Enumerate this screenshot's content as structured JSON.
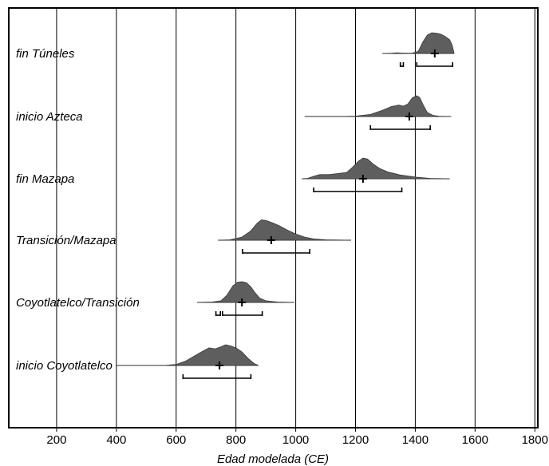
{
  "chart_data": {
    "type": "density-ridge",
    "title": "",
    "xlabel": "Edad modelada (CE)",
    "ylabel": "",
    "xlim": [
      40,
      1810
    ],
    "xticks": [
      200,
      400,
      600,
      800,
      1000,
      1200,
      1400,
      1600,
      1800
    ],
    "grid": true,
    "phases": [
      {
        "name": "fin Túneles",
        "mean": 1465,
        "range_start": 1290,
        "range_end": 1530,
        "intervals": [
          [
            1350,
            1360
          ],
          [
            1405,
            1525
          ]
        ],
        "density": [
          [
            1290,
            0.0
          ],
          [
            1320,
            0.01
          ],
          [
            1340,
            0.03
          ],
          [
            1355,
            0.02
          ],
          [
            1370,
            0.01
          ],
          [
            1390,
            0.02
          ],
          [
            1410,
            0.1
          ],
          [
            1425,
            0.55
          ],
          [
            1440,
            0.88
          ],
          [
            1455,
            1.0
          ],
          [
            1470,
            0.98
          ],
          [
            1485,
            0.93
          ],
          [
            1500,
            0.82
          ],
          [
            1515,
            0.66
          ],
          [
            1523,
            0.42
          ],
          [
            1530,
            0.0
          ]
        ]
      },
      {
        "name": "inicio Azteca",
        "mean": 1380,
        "range_start": 1030,
        "range_end": 1520,
        "intervals": [
          [
            1250,
            1450
          ]
        ],
        "density": [
          [
            1030,
            0.0
          ],
          [
            1150,
            0.0
          ],
          [
            1200,
            0.02
          ],
          [
            1250,
            0.1
          ],
          [
            1290,
            0.3
          ],
          [
            1320,
            0.48
          ],
          [
            1345,
            0.55
          ],
          [
            1360,
            0.5
          ],
          [
            1375,
            0.6
          ],
          [
            1390,
            0.9
          ],
          [
            1405,
            1.0
          ],
          [
            1415,
            0.92
          ],
          [
            1425,
            0.6
          ],
          [
            1440,
            0.2
          ],
          [
            1460,
            0.05
          ],
          [
            1480,
            0.01
          ],
          [
            1520,
            0.0
          ]
        ]
      },
      {
        "name": "fin Mazapa",
        "mean": 1225,
        "range_start": 1020,
        "range_end": 1515,
        "intervals": [
          [
            1060,
            1355
          ]
        ],
        "density": [
          [
            1020,
            0.0
          ],
          [
            1040,
            0.02
          ],
          [
            1060,
            0.12
          ],
          [
            1080,
            0.2
          ],
          [
            1110,
            0.2
          ],
          [
            1140,
            0.25
          ],
          [
            1170,
            0.3
          ],
          [
            1190,
            0.55
          ],
          [
            1210,
            0.85
          ],
          [
            1225,
            1.0
          ],
          [
            1240,
            0.95
          ],
          [
            1260,
            0.7
          ],
          [
            1280,
            0.5
          ],
          [
            1310,
            0.32
          ],
          [
            1350,
            0.18
          ],
          [
            1400,
            0.08
          ],
          [
            1450,
            0.02
          ],
          [
            1515,
            0.0
          ]
        ]
      },
      {
        "name": "Transición/Mazapa",
        "mean": 918,
        "range_start": 740,
        "range_end": 1185,
        "intervals": [
          [
            822,
            1047
          ]
        ],
        "density": [
          [
            740,
            0.0
          ],
          [
            780,
            0.02
          ],
          [
            820,
            0.15
          ],
          [
            850,
            0.45
          ],
          [
            870,
            0.8
          ],
          [
            885,
            0.98
          ],
          [
            900,
            0.95
          ],
          [
            920,
            0.85
          ],
          [
            945,
            0.7
          ],
          [
            970,
            0.5
          ],
          [
            1000,
            0.3
          ],
          [
            1030,
            0.15
          ],
          [
            1060,
            0.06
          ],
          [
            1100,
            0.02
          ],
          [
            1185,
            0.0
          ]
        ]
      },
      {
        "name": "Coyotlatelco/Transición",
        "mean": 820,
        "range_start": 670,
        "range_end": 995,
        "intervals": [
          [
            733,
            748
          ],
          [
            755,
            888
          ]
        ],
        "density": [
          [
            670,
            0.0
          ],
          [
            720,
            0.02
          ],
          [
            750,
            0.08
          ],
          [
            770,
            0.35
          ],
          [
            790,
            0.8
          ],
          [
            805,
            0.97
          ],
          [
            820,
            1.0
          ],
          [
            835,
            0.95
          ],
          [
            850,
            0.75
          ],
          [
            865,
            0.45
          ],
          [
            880,
            0.2
          ],
          [
            900,
            0.08
          ],
          [
            940,
            0.02
          ],
          [
            995,
            0.0
          ]
        ]
      },
      {
        "name": "inicio Coyotlatelco",
        "mean": 745,
        "range_start": 400,
        "range_end": 875,
        "intervals": [
          [
            623,
            850
          ]
        ],
        "density": [
          [
            400,
            0.0
          ],
          [
            560,
            0.0
          ],
          [
            600,
            0.05
          ],
          [
            630,
            0.2
          ],
          [
            660,
            0.45
          ],
          [
            690,
            0.7
          ],
          [
            710,
            0.85
          ],
          [
            730,
            0.8
          ],
          [
            750,
            0.9
          ],
          [
            765,
            1.0
          ],
          [
            780,
            0.95
          ],
          [
            800,
            0.85
          ],
          [
            820,
            0.65
          ],
          [
            840,
            0.35
          ],
          [
            860,
            0.1
          ],
          [
            875,
            0.0
          ]
        ]
      }
    ]
  }
}
